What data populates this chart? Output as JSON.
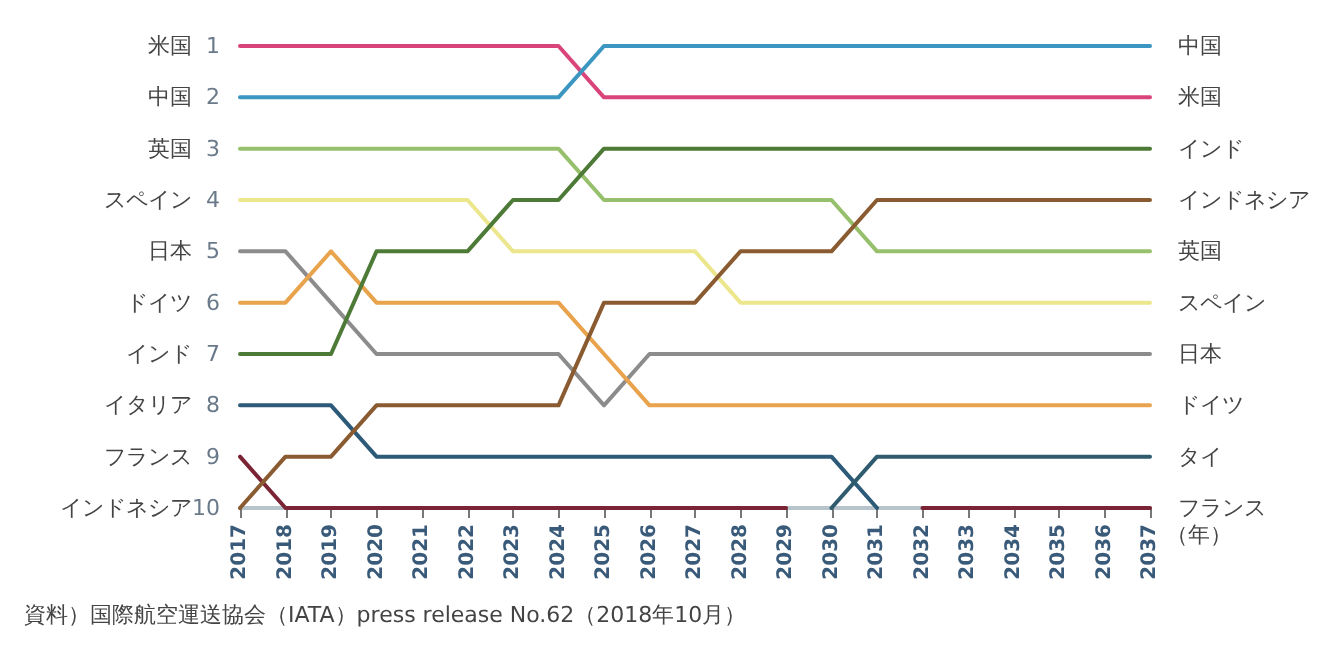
{
  "chart_data": {
    "type": "line",
    "categories": [
      "2017",
      "2018",
      "2019",
      "2020",
      "2021",
      "2022",
      "2023",
      "2024",
      "2025",
      "2026",
      "2027",
      "2028",
      "2029",
      "2030",
      "2031",
      "2032",
      "2033",
      "2034",
      "2035",
      "2036",
      "2037"
    ],
    "xlabel": "（年）",
    "ylim": [
      10,
      1
    ],
    "yticks": [
      1,
      2,
      3,
      4,
      5,
      6,
      7,
      8,
      9,
      10
    ],
    "series": [
      {
        "name": "米国",
        "color": "#d9457a",
        "values": [
          1,
          1,
          1,
          1,
          1,
          1,
          1,
          1,
          2,
          2,
          2,
          2,
          2,
          2,
          2,
          2,
          2,
          2,
          2,
          2,
          2
        ]
      },
      {
        "name": "中国",
        "color": "#3c96c2",
        "values": [
          2,
          2,
          2,
          2,
          2,
          2,
          2,
          2,
          1,
          1,
          1,
          1,
          1,
          1,
          1,
          1,
          1,
          1,
          1,
          1,
          1
        ]
      },
      {
        "name": "英国",
        "color": "#96c06c",
        "values": [
          3,
          3,
          3,
          3,
          3,
          3,
          3,
          3,
          4,
          4,
          4,
          4,
          4,
          4,
          5,
          5,
          5,
          5,
          5,
          5,
          5
        ]
      },
      {
        "name": "スペイン",
        "color": "#ece68c",
        "values": [
          4,
          4,
          4,
          4,
          4,
          4,
          5,
          5,
          5,
          5,
          5,
          6,
          6,
          6,
          6,
          6,
          6,
          6,
          6,
          6,
          6
        ]
      },
      {
        "name": "日本",
        "color": "#8c8c8c",
        "values": [
          5,
          5,
          6,
          7,
          7,
          7,
          7,
          7,
          8,
          7,
          7,
          7,
          7,
          7,
          7,
          7,
          7,
          7,
          7,
          7,
          7
        ]
      },
      {
        "name": "ドイツ",
        "color": "#e8a34c",
        "values": [
          6,
          6,
          5,
          6,
          6,
          6,
          6,
          6,
          7,
          8,
          8,
          8,
          8,
          8,
          8,
          8,
          8,
          8,
          8,
          8,
          8
        ]
      },
      {
        "name": "インド",
        "color": "#4d7a36",
        "values": [
          7,
          7,
          7,
          5,
          5,
          5,
          4,
          4,
          3,
          3,
          3,
          3,
          3,
          3,
          3,
          3,
          3,
          3,
          3,
          3,
          3
        ]
      },
      {
        "name": "イタリア",
        "color": "#2c5a78",
        "values": [
          8,
          8,
          8,
          9,
          9,
          9,
          9,
          9,
          9,
          9,
          9,
          9,
          9,
          9,
          10,
          null,
          null,
          null,
          null,
          null,
          null
        ]
      },
      {
        "name": "フランス",
        "color": "#7b2436",
        "values": [
          9,
          10,
          10,
          10,
          10,
          10,
          10,
          10,
          10,
          10,
          10,
          10,
          10,
          null,
          null,
          10,
          10,
          10,
          10,
          10,
          10
        ]
      },
      {
        "name": "インドネシア",
        "color": "#8a5b31",
        "values": [
          10,
          9,
          9,
          8,
          8,
          8,
          8,
          8,
          6,
          6,
          6,
          5,
          5,
          5,
          4,
          4,
          4,
          4,
          4,
          4,
          4
        ]
      },
      {
        "name": "タイ",
        "color": "#2f5b6e",
        "values": [
          null,
          null,
          null,
          null,
          null,
          null,
          null,
          null,
          null,
          null,
          null,
          null,
          null,
          10,
          9,
          9,
          9,
          9,
          9,
          9,
          9
        ]
      }
    ],
    "grid": false,
    "marker": "none",
    "line_style": "solid",
    "annotations": [
      "資料）国際航空運送協会（IATA）press release No.62（2018年10月）"
    ]
  }
}
